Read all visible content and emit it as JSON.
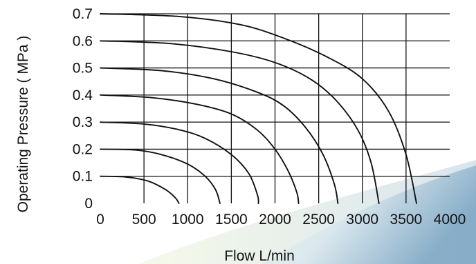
{
  "chart_data": {
    "type": "line",
    "xlabel": "Flow  L/min",
    "ylabel": "Operating Pressure ( MPa )",
    "xlim": [
      0,
      4000
    ],
    "ylim": [
      0,
      0.7
    ],
    "x_ticks": [
      "0",
      "500",
      "1000",
      "1500",
      "2000",
      "2500",
      "3000",
      "3500",
      "4000"
    ],
    "y_ticks": [
      "0",
      "0.1",
      "0.2",
      "0.3",
      "0.4",
      "0.5",
      "0.6",
      "0.7"
    ],
    "grid": true,
    "series": [
      {
        "points": [
          [
            0,
            0.1
          ],
          [
            300,
            0.097
          ],
          [
            550,
            0.082
          ],
          [
            750,
            0.05
          ],
          [
            860,
            0.02
          ],
          [
            900,
            0
          ]
        ]
      },
      {
        "points": [
          [
            0,
            0.2
          ],
          [
            400,
            0.197
          ],
          [
            700,
            0.18
          ],
          [
            1000,
            0.145
          ],
          [
            1200,
            0.1
          ],
          [
            1320,
            0.05
          ],
          [
            1370,
            0
          ]
        ]
      },
      {
        "points": [
          [
            0,
            0.3
          ],
          [
            500,
            0.293
          ],
          [
            900,
            0.272
          ],
          [
            1200,
            0.24
          ],
          [
            1500,
            0.18
          ],
          [
            1700,
            0.11
          ],
          [
            1800,
            0.03
          ],
          [
            1810,
            0
          ]
        ]
      },
      {
        "points": [
          [
            0,
            0.4
          ],
          [
            600,
            0.39
          ],
          [
            1100,
            0.366
          ],
          [
            1500,
            0.33
          ],
          [
            1800,
            0.27
          ],
          [
            2000,
            0.2
          ],
          [
            2150,
            0.12
          ],
          [
            2250,
            0.04
          ],
          [
            2270,
            0
          ]
        ]
      },
      {
        "points": [
          [
            0,
            0.5
          ],
          [
            700,
            0.49
          ],
          [
            1300,
            0.46
          ],
          [
            1800,
            0.41
          ],
          [
            2100,
            0.36
          ],
          [
            2350,
            0.28
          ],
          [
            2550,
            0.18
          ],
          [
            2680,
            0.07
          ],
          [
            2720,
            0
          ]
        ]
      },
      {
        "points": [
          [
            0,
            0.6
          ],
          [
            800,
            0.59
          ],
          [
            1500,
            0.56
          ],
          [
            2000,
            0.52
          ],
          [
            2400,
            0.46
          ],
          [
            2700,
            0.38
          ],
          [
            2950,
            0.27
          ],
          [
            3100,
            0.15
          ],
          [
            3190,
            0
          ]
        ]
      },
      {
        "points": [
          [
            0,
            0.7
          ],
          [
            900,
            0.69
          ],
          [
            1600,
            0.66
          ],
          [
            2100,
            0.61
          ],
          [
            2600,
            0.54
          ],
          [
            3000,
            0.46
          ],
          [
            3300,
            0.34
          ],
          [
            3500,
            0.18
          ],
          [
            3620,
            0
          ]
        ]
      }
    ]
  }
}
